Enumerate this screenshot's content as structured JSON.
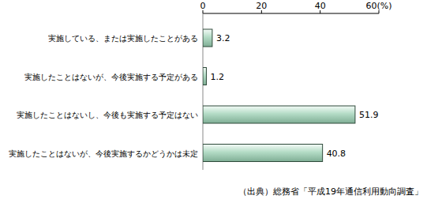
{
  "chart_data": {
    "type": "bar",
    "orientation": "horizontal",
    "categories": [
      "実施している、または実施したことがある",
      "実施したことはないが、今後実施する予定がある",
      "実施したことはないし、今後も実施する予定はない",
      "実施したことはないが、今後実施するかどうかは未定"
    ],
    "values": [
      3.2,
      1.2,
      51.9,
      40.8
    ],
    "color": "#b4dcc6",
    "xlim": [
      0,
      60
    ],
    "xticks": [
      0,
      20,
      40,
      {
        "value": 60,
        "label": "60(%)"
      }
    ],
    "data_labels": true,
    "grid": false,
    "annotations": [
      "（出典）総務省「平成19年通信利用動向調査」"
    ]
  }
}
